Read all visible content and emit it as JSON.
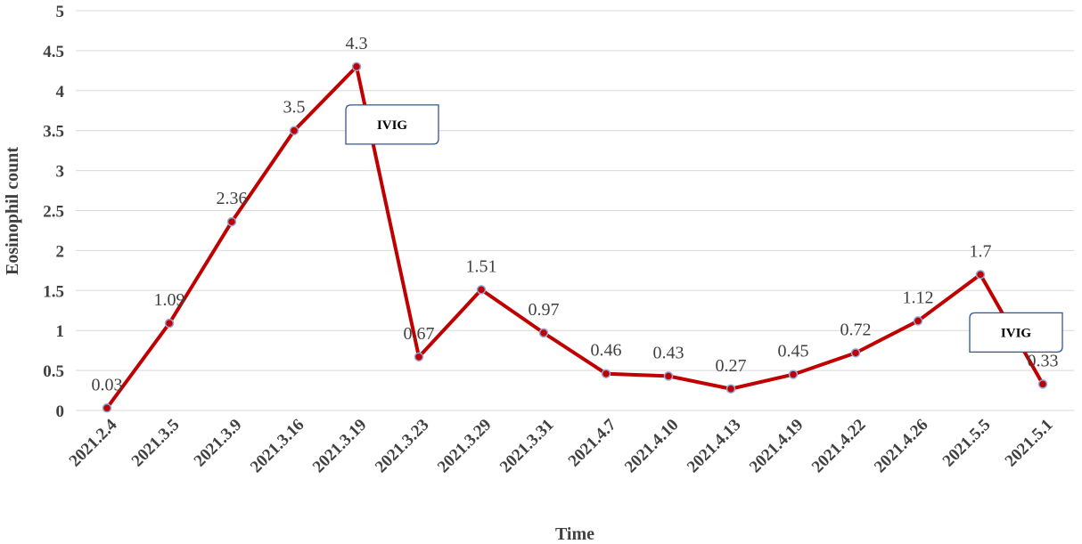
{
  "chart_data": {
    "type": "line",
    "title": "",
    "xlabel": "Time",
    "ylabel": "Eosinophil count",
    "ylim": [
      0,
      5
    ],
    "yticks": [
      "0",
      "0.5",
      "1",
      "1.5",
      "2",
      "2.5",
      "3",
      "3.5",
      "4",
      "4.5",
      "5"
    ],
    "grid": true,
    "categories": [
      "2021.2.4",
      "2021.3.5",
      "2021.3.9",
      "2021.3.16",
      "2021.3.19",
      "2021.3.23",
      "2021.3.29",
      "2021.3.31",
      "2021.4.7",
      "2021.4.10",
      "2021.4.13",
      "2021.4.19",
      "2021.4.22",
      "2021.4.26",
      "2021.5.5",
      "2021.5.1"
    ],
    "series": [
      {
        "values": [
          0.03,
          1.09,
          2.36,
          3.5,
          4.3,
          0.67,
          1.51,
          0.97,
          0.46,
          0.43,
          0.27,
          0.45,
          0.72,
          1.12,
          1.7,
          0.33
        ],
        "labels": [
          "0.03",
          "1.09",
          "2.36",
          "3.5",
          "4.3",
          "0.67",
          "1.51",
          "0.97",
          "0.46",
          "0.43",
          "0.27",
          "0.45",
          "0.72",
          "1.12",
          "1.7",
          "0.33"
        ],
        "color": "#c00000",
        "marker_color": "#c00000",
        "marker_edge_color": "#8faadc"
      }
    ],
    "annotations": [
      {
        "text": "IVIG",
        "after_category": "2021.3.19"
      },
      {
        "text": "IVIG",
        "after_category": "2021.5.5"
      }
    ],
    "annotation_border_color": "#2f5597"
  }
}
